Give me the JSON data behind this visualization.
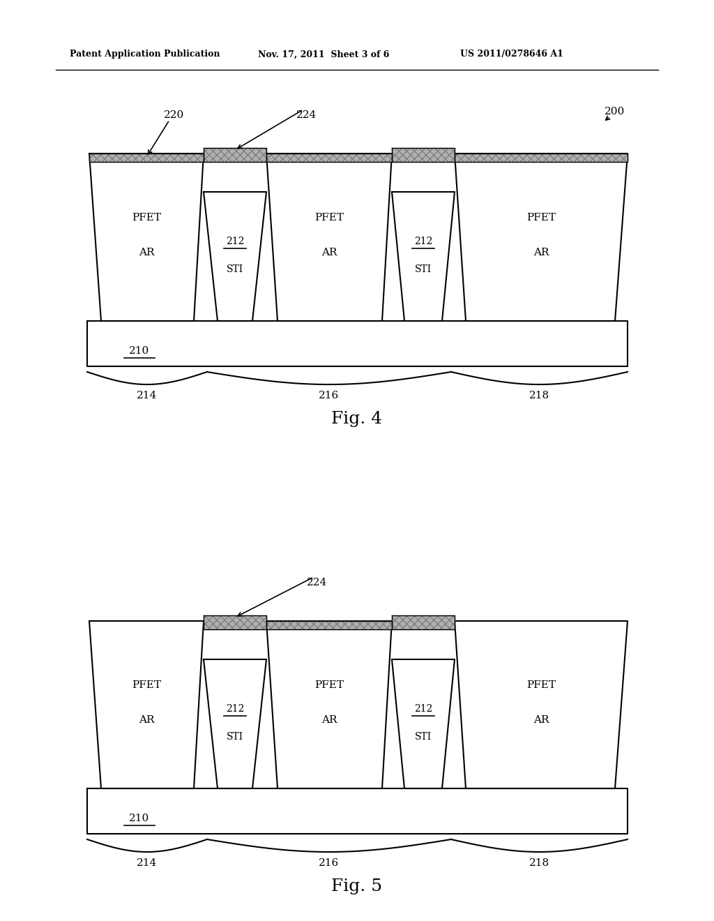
{
  "header_left": "Patent Application Publication",
  "header_mid": "Nov. 17, 2011  Sheet 3 of 6",
  "header_right": "US 2011/0278646 A1",
  "fig4_label": "Fig. 4",
  "fig5_label": "Fig. 5",
  "label_200": "200",
  "label_210": "210",
  "label_212": "212",
  "label_214": "214",
  "label_216": "216",
  "label_218": "218",
  "label_220": "220",
  "label_224": "224",
  "label_PFET": "PFET",
  "label_AR": "AR",
  "label_STI": "STI",
  "bg_color": "#ffffff",
  "line_color": "#000000"
}
